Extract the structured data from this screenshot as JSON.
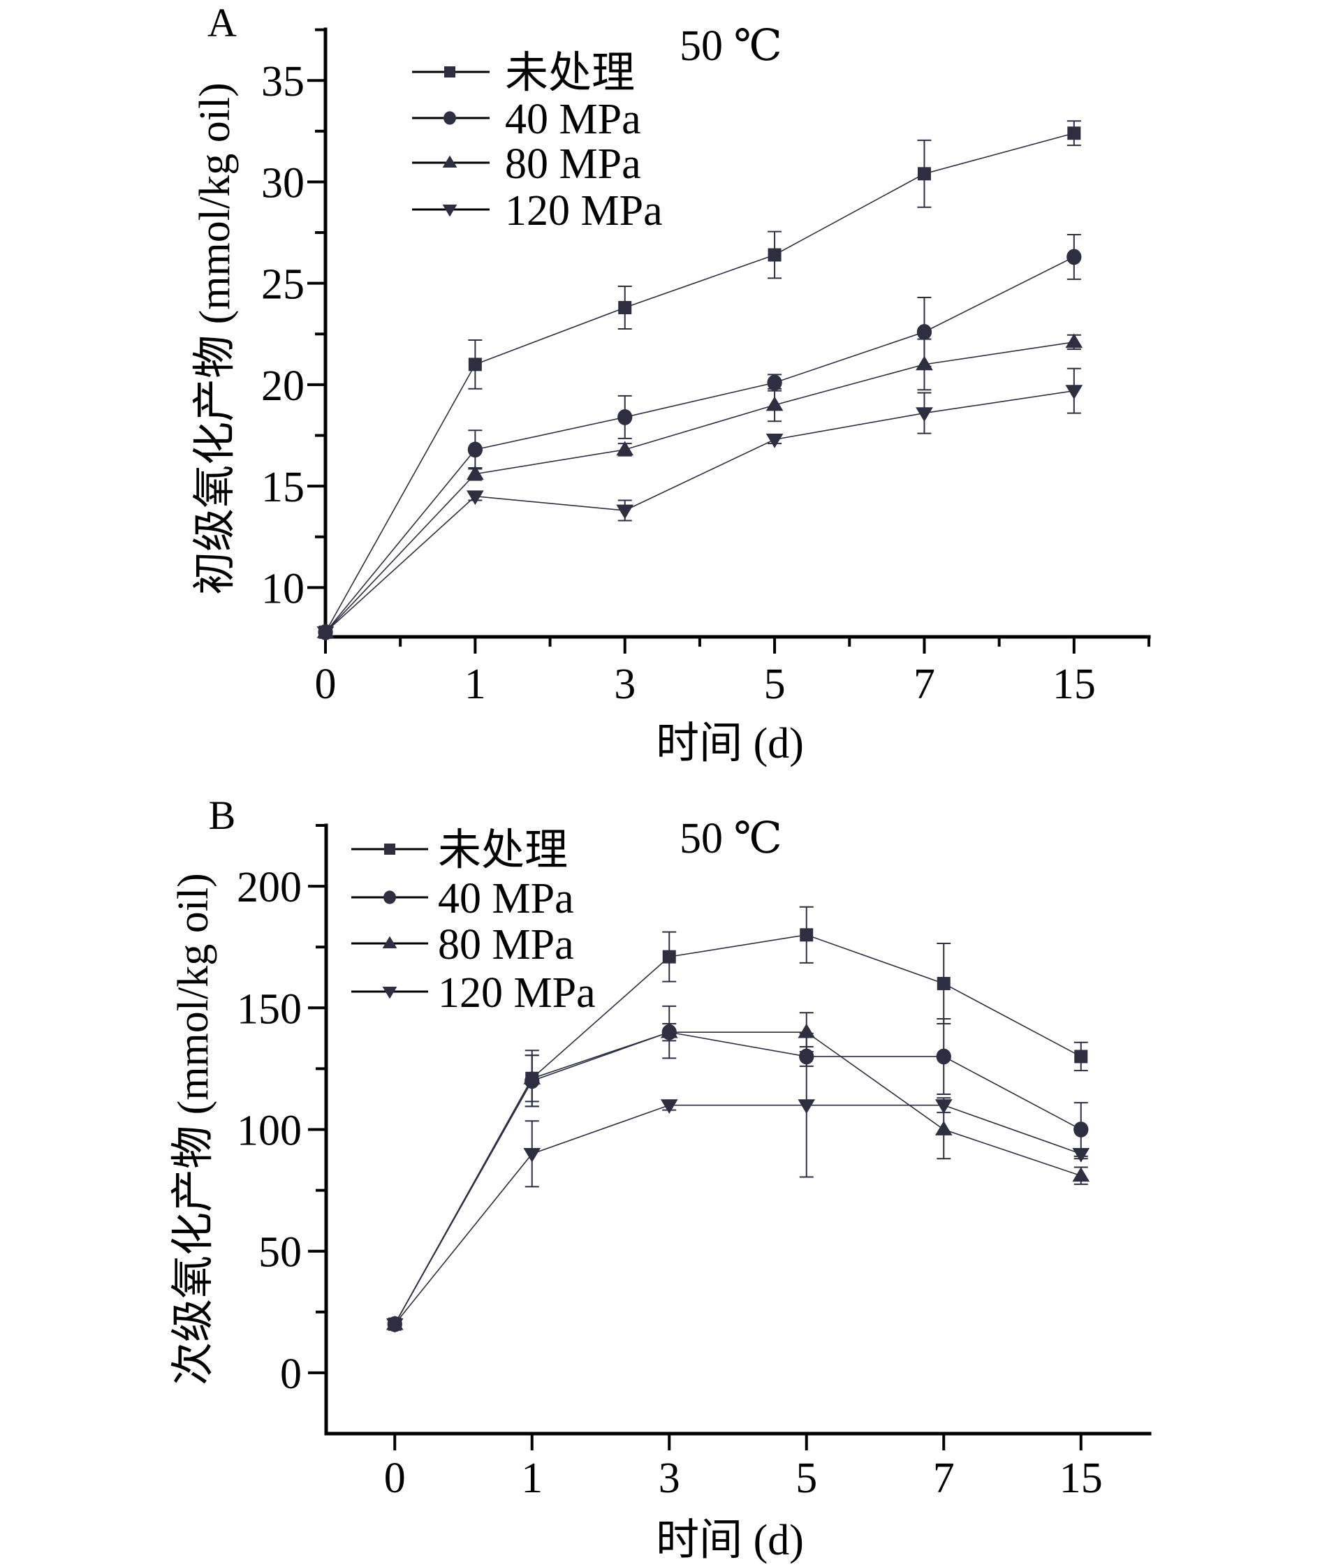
{
  "chart_data": [
    {
      "type": "line",
      "panel_label": "A",
      "annotation": "50 ℃",
      "xlabel": "时间 (d)",
      "ylabel": "初级氧化产物 (mmol/kg oil)",
      "categories": [
        "0",
        "1",
        "3",
        "5",
        "7",
        "15"
      ],
      "yticks": [
        10,
        15,
        20,
        25,
        30,
        35
      ],
      "ytick_labels": [
        "10",
        "15",
        "20",
        "25",
        "30",
        "35"
      ],
      "ylim": [
        7.57,
        37.52
      ],
      "legend_position": "top-left",
      "grid": false,
      "series": [
        {
          "name": "未处理",
          "marker": "square",
          "values": [
            7.8,
            21.0,
            23.8,
            26.4,
            30.4,
            32.4
          ],
          "errors": [
            0,
            1.2,
            1.05,
            1.15,
            1.65,
            0.6
          ]
        },
        {
          "name": "40 MPa",
          "marker": "circle",
          "values": [
            7.8,
            16.8,
            18.4,
            20.1,
            22.6,
            26.3
          ],
          "errors": [
            0,
            0.95,
            1.05,
            0.4,
            1.7,
            1.1
          ]
        },
        {
          "name": "80 MPa",
          "marker": "triangle-up",
          "values": [
            7.8,
            15.6,
            16.8,
            19.0,
            21.0,
            22.1
          ],
          "errors": [
            0,
            0.3,
            0.3,
            0.8,
            1.25,
            0.35
          ]
        },
        {
          "name": "120 MPa",
          "marker": "triangle-down",
          "values": [
            7.8,
            14.5,
            13.8,
            17.3,
            18.6,
            19.7
          ],
          "errors": [
            0,
            0.2,
            0.5,
            0.2,
            1.0,
            1.1
          ]
        }
      ]
    },
    {
      "type": "line",
      "panel_label": "B",
      "annotation": "50 ℃",
      "xlabel": "时间 (d)",
      "ylabel": "次级氧化产物 (mmol/kg oil)",
      "categories": [
        "0",
        "1",
        "3",
        "5",
        "7",
        "15"
      ],
      "yticks": [
        0,
        50,
        100,
        150,
        200
      ],
      "ytick_labels": [
        "0",
        "50",
        "100",
        "150",
        "200"
      ],
      "ylim": [
        -25,
        225
      ],
      "legend_position": "top-left",
      "grid": false,
      "series": [
        {
          "name": "未处理",
          "marker": "square",
          "values": [
            20,
            121,
            171,
            180,
            160,
            130
          ],
          "errors": [
            2,
            11.5,
            10.2,
            11.5,
            16.5,
            5.8
          ]
        },
        {
          "name": "40 MPa",
          "marker": "circle",
          "values": [
            20,
            120,
            140,
            130,
            130,
            100
          ],
          "errors": [
            2,
            10.5,
            10.7,
            4,
            15.5,
            11
          ]
        },
        {
          "name": "80 MPa",
          "marker": "triangle-up",
          "values": [
            20,
            121,
            140,
            140,
            100,
            81
          ],
          "errors": [
            2,
            9.5,
            3.5,
            8,
            12,
            3.5
          ]
        },
        {
          "name": "120 MPa",
          "marker": "triangle-down",
          "values": [
            20,
            90,
            110,
            110,
            110,
            90
          ],
          "errors": [
            2,
            13.5,
            2,
            29.5,
            3,
            2
          ]
        }
      ]
    }
  ],
  "colors": {
    "marker": "#2e2e40",
    "axis": "#000000",
    "text": "#000000"
  }
}
